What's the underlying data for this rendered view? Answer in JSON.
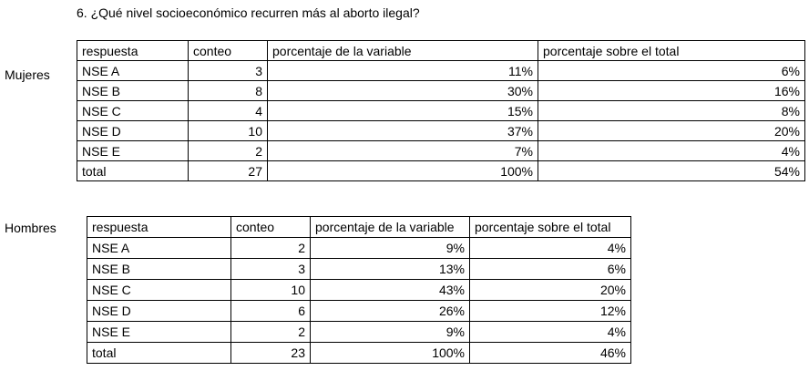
{
  "title": "6. ¿Qué nivel socioeconómico recurren más al aborto ilegal?",
  "colors": {
    "background": "#ffffff",
    "text": "#000000",
    "table_border": "#000000"
  },
  "tables": [
    {
      "label": "Mujeres",
      "headers": [
        "respuesta",
        "conteo",
        "porcentaje de la variable",
        "porcentaje sobre el total"
      ],
      "rows": [
        [
          "NSE A",
          "3",
          "11%",
          "6%"
        ],
        [
          "NSE B",
          "8",
          "30%",
          "16%"
        ],
        [
          "NSE C",
          "4",
          "15%",
          "8%"
        ],
        [
          "NSE D",
          "10",
          "37%",
          "20%"
        ],
        [
          "NSE E",
          "2",
          "7%",
          "4%"
        ],
        [
          "total",
          "27",
          "100%",
          "54%"
        ]
      ]
    },
    {
      "label": "Hombres",
      "headers": [
        "respuesta",
        "conteo",
        "porcentaje de la variable",
        "porcentaje sobre el total"
      ],
      "rows": [
        [
          "NSE A",
          "2",
          "9%",
          "4%"
        ],
        [
          "NSE B",
          "3",
          "13%",
          "6%"
        ],
        [
          "NSE C",
          "10",
          "43%",
          "20%"
        ],
        [
          "NSE D",
          "6",
          "26%",
          "12%"
        ],
        [
          "NSE E",
          "2",
          "9%",
          "4%"
        ],
        [
          "total",
          "23",
          "100%",
          "46%"
        ]
      ]
    }
  ]
}
